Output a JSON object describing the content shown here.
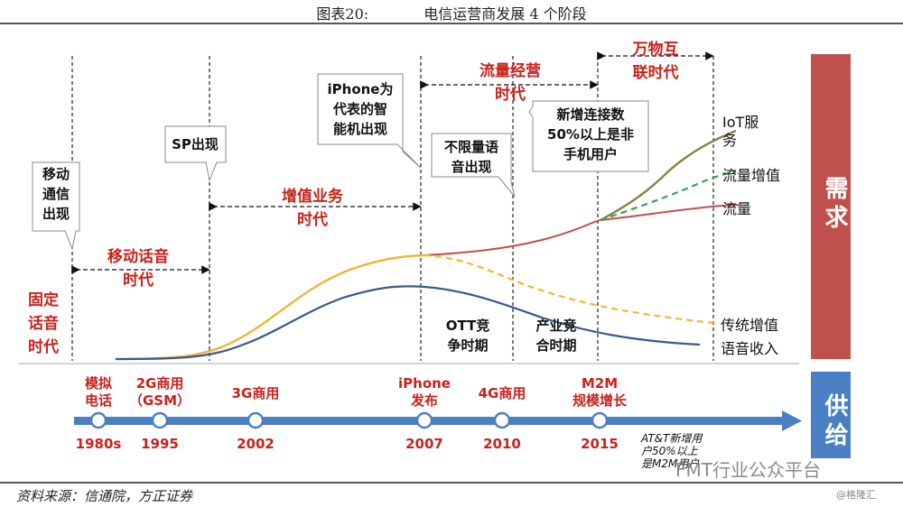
{
  "title": {
    "label": "图表20:",
    "text": "电信运营商发展 4 个阶段"
  },
  "source": "资料来源：信通院，方正证券",
  "credit": "@格隆汇",
  "watermark": "FMT行业公众平台",
  "side": {
    "demand": "需求",
    "supply": "供给"
  },
  "colors": {
    "red": "#c9221c",
    "blue": "#3a5a8c",
    "gold": "#f2b631",
    "olive": "#8b8044",
    "green": "#2ca84a",
    "rust": "#c0504d",
    "arrow": "#4a7fc1",
    "band": "#c0504d",
    "supplyBox": "#4a7fc1"
  },
  "stages": {
    "fixed": [
      "固定",
      "话音",
      "时代"
    ],
    "mobileVoice": [
      "移动话音",
      "时代"
    ],
    "valueAdded": [
      "增值业务",
      "时代"
    ],
    "traffic": [
      "流量经营",
      "时代"
    ],
    "iot": [
      "万物互",
      "联时代"
    ],
    "ott": [
      "OTT竞",
      "争时期"
    ],
    "industry": [
      "产业竞",
      "合时期"
    ]
  },
  "callouts": {
    "mobile": [
      "移动",
      "通信",
      "出现"
    ],
    "sp": [
      "SP出现"
    ],
    "iphone": [
      "iPhone为",
      "代表的智",
      "能机出现"
    ],
    "unlimited": [
      "不限量语",
      "音出现"
    ],
    "newConn": [
      "新增连接数",
      "50%以上是非",
      "手机用户"
    ]
  },
  "curveLabels": {
    "iot": [
      "IoT服",
      "务"
    ],
    "trafficValue": "流量增值",
    "traffic": "流量",
    "legacy": "传统增值",
    "voice": "语音收入"
  },
  "timeline": [
    {
      "top": [
        "模拟",
        "电话"
      ],
      "year": "1980s"
    },
    {
      "top": [
        "2G商用",
        "（GSM）"
      ],
      "year": "1995"
    },
    {
      "top": [
        "3G商用"
      ],
      "year": "2002"
    },
    {
      "top": [
        "iPhone",
        "发布"
      ],
      "year": "2007"
    },
    {
      "top": [
        "4G商用"
      ],
      "year": "2010"
    },
    {
      "top": [
        "M2M",
        "规模增长"
      ],
      "year": "2015"
    }
  ],
  "att_note": [
    "AT&T新增用",
    "户50%以上",
    "是M2M用户"
  ]
}
